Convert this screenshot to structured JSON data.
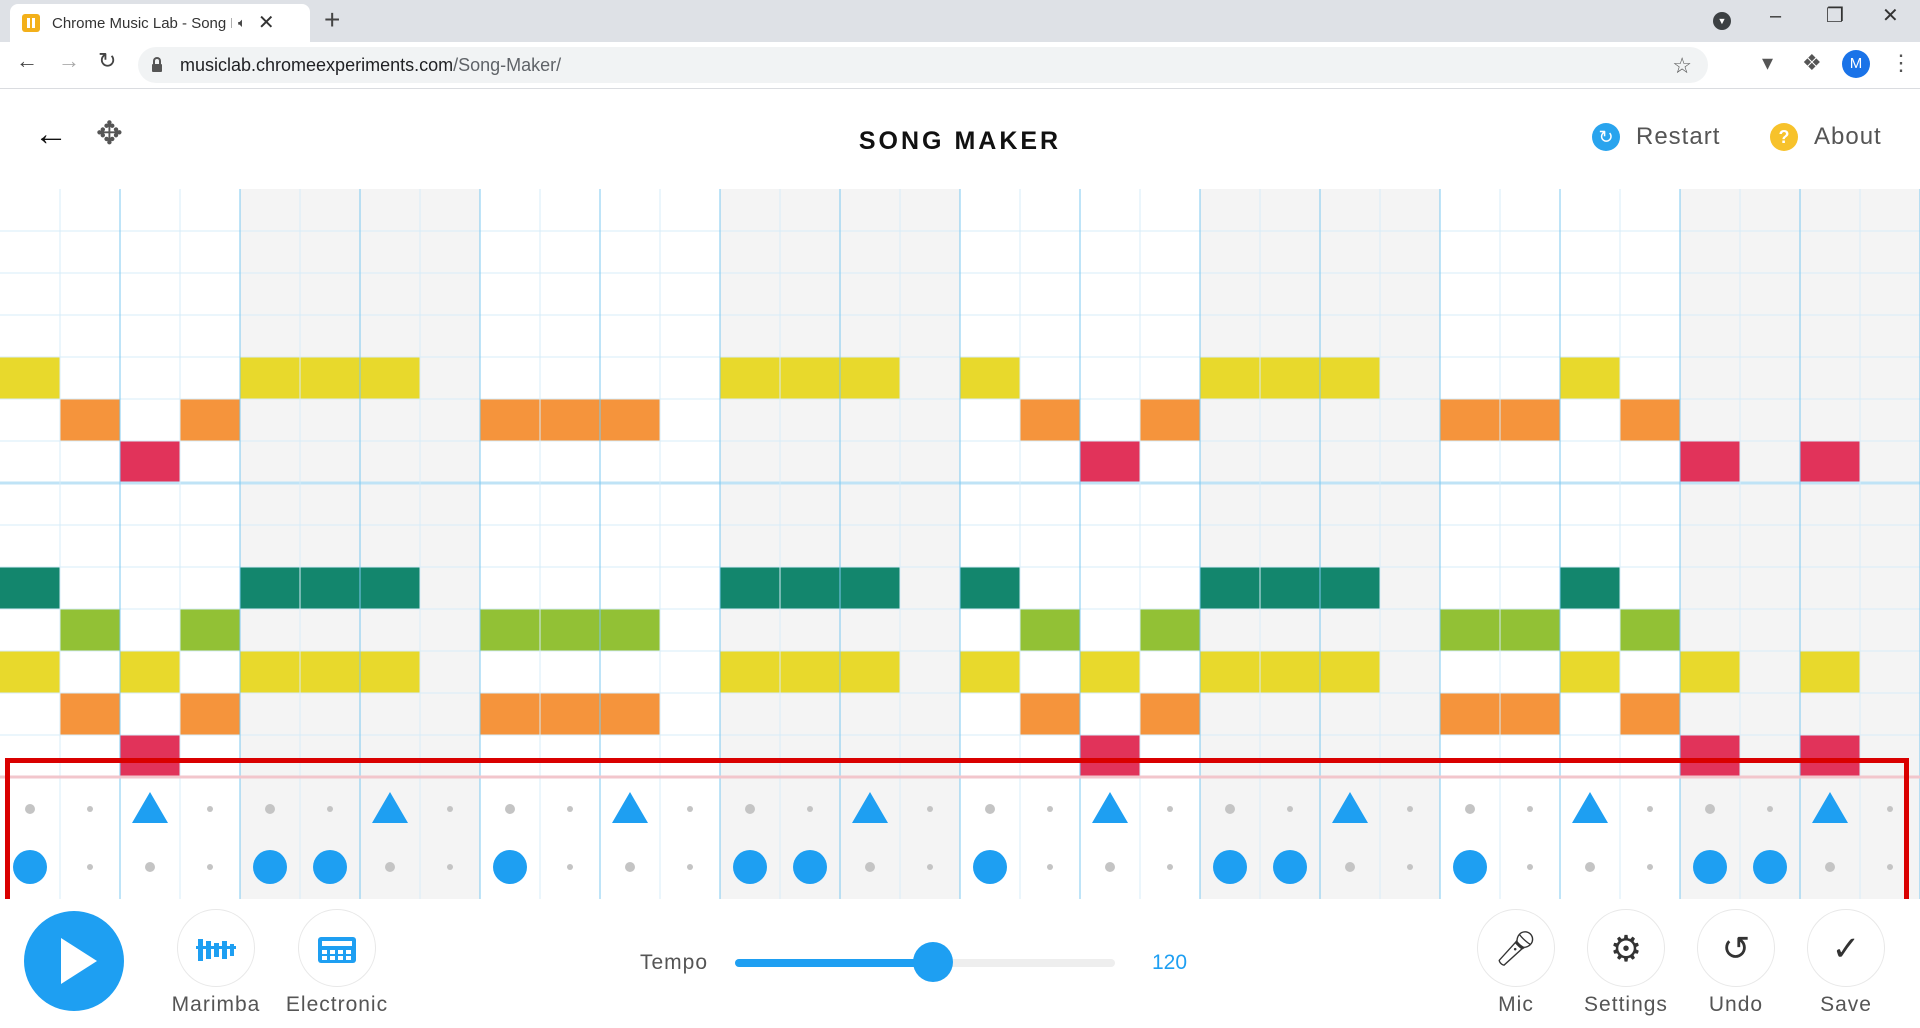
{
  "browser": {
    "tab_title": "Chrome Music Lab - Song Maker",
    "url_domain": "musiclab.chromeexperiments.com",
    "url_path": "/Song-Maker/",
    "profile_initial": "M"
  },
  "header": {
    "title": "SONG MAKER",
    "restart_label": "Restart",
    "about_label": "About"
  },
  "colors": {
    "accent": "#1e9ff2",
    "note_colors": [
      "#e8d92c",
      "#f5943c",
      "#e1335a",
      "#13866d",
      "#92c135"
    ]
  },
  "melody": {
    "columns": 32,
    "rows": 14,
    "notes": [
      {
        "col": 0,
        "row": 4,
        "color": 0
      },
      {
        "col": 1,
        "row": 5,
        "color": 1
      },
      {
        "col": 2,
        "row": 6,
        "color": 2
      },
      {
        "col": 3,
        "row": 5,
        "color": 1
      },
      {
        "col": 4,
        "row": 4,
        "color": 0
      },
      {
        "col": 5,
        "row": 4,
        "color": 0
      },
      {
        "col": 6,
        "row": 4,
        "color": 0
      },
      {
        "col": 8,
        "row": 5,
        "color": 1
      },
      {
        "col": 9,
        "row": 5,
        "color": 1
      },
      {
        "col": 10,
        "row": 5,
        "color": 1
      },
      {
        "col": 12,
        "row": 4,
        "color": 0
      },
      {
        "col": 13,
        "row": 4,
        "color": 0
      },
      {
        "col": 14,
        "row": 4,
        "color": 0
      },
      {
        "col": 16,
        "row": 4,
        "color": 0
      },
      {
        "col": 17,
        "row": 5,
        "color": 1
      },
      {
        "col": 18,
        "row": 6,
        "color": 2
      },
      {
        "col": 19,
        "row": 5,
        "color": 1
      },
      {
        "col": 20,
        "row": 4,
        "color": 0
      },
      {
        "col": 21,
        "row": 4,
        "color": 0
      },
      {
        "col": 22,
        "row": 4,
        "color": 0
      },
      {
        "col": 24,
        "row": 5,
        "color": 1
      },
      {
        "col": 25,
        "row": 5,
        "color": 1
      },
      {
        "col": 26,
        "row": 4,
        "color": 0
      },
      {
        "col": 27,
        "row": 5,
        "color": 1
      },
      {
        "col": 28,
        "row": 6,
        "color": 2
      },
      {
        "col": 30,
        "row": 6,
        "color": 2
      },
      {
        "col": 0,
        "row": 9,
        "color": 3
      },
      {
        "col": 1,
        "row": 10,
        "color": 4
      },
      {
        "col": 2,
        "row": 11,
        "color": 0
      },
      {
        "col": 3,
        "row": 10,
        "color": 4
      },
      {
        "col": 4,
        "row": 9,
        "color": 3
      },
      {
        "col": 5,
        "row": 9,
        "color": 3
      },
      {
        "col": 6,
        "row": 9,
        "color": 3
      },
      {
        "col": 8,
        "row": 10,
        "color": 4
      },
      {
        "col": 9,
        "row": 10,
        "color": 4
      },
      {
        "col": 10,
        "row": 10,
        "color": 4
      },
      {
        "col": 12,
        "row": 9,
        "color": 3
      },
      {
        "col": 13,
        "row": 9,
        "color": 3
      },
      {
        "col": 14,
        "row": 9,
        "color": 3
      },
      {
        "col": 16,
        "row": 9,
        "color": 3
      },
      {
        "col": 17,
        "row": 10,
        "color": 4
      },
      {
        "col": 18,
        "row": 11,
        "color": 0
      },
      {
        "col": 19,
        "row": 10,
        "color": 4
      },
      {
        "col": 20,
        "row": 9,
        "color": 3
      },
      {
        "col": 21,
        "row": 9,
        "color": 3
      },
      {
        "col": 22,
        "row": 9,
        "color": 3
      },
      {
        "col": 24,
        "row": 10,
        "color": 4
      },
      {
        "col": 25,
        "row": 10,
        "color": 4
      },
      {
        "col": 26,
        "row": 9,
        "color": 3
      },
      {
        "col": 27,
        "row": 10,
        "color": 4
      },
      {
        "col": 28,
        "row": 11,
        "color": 0
      },
      {
        "col": 30,
        "row": 11,
        "color": 0
      },
      {
        "col": 0,
        "row": 11,
        "color": 0
      },
      {
        "col": 1,
        "row": 12,
        "color": 1
      },
      {
        "col": 2,
        "row": 13,
        "color": 2
      },
      {
        "col": 3,
        "row": 12,
        "color": 1
      },
      {
        "col": 4,
        "row": 11,
        "color": 0
      },
      {
        "col": 5,
        "row": 11,
        "color": 0
      },
      {
        "col": 6,
        "row": 11,
        "color": 0
      },
      {
        "col": 8,
        "row": 12,
        "color": 1
      },
      {
        "col": 9,
        "row": 12,
        "color": 1
      },
      {
        "col": 10,
        "row": 12,
        "color": 1
      },
      {
        "col": 12,
        "row": 11,
        "color": 0
      },
      {
        "col": 13,
        "row": 11,
        "color": 0
      },
      {
        "col": 14,
        "row": 11,
        "color": 0
      },
      {
        "col": 16,
        "row": 11,
        "color": 0
      },
      {
        "col": 17,
        "row": 12,
        "color": 1
      },
      {
        "col": 18,
        "row": 13,
        "color": 2
      },
      {
        "col": 19,
        "row": 12,
        "color": 1
      },
      {
        "col": 20,
        "row": 11,
        "color": 0
      },
      {
        "col": 21,
        "row": 11,
        "color": 0
      },
      {
        "col": 22,
        "row": 11,
        "color": 0
      },
      {
        "col": 24,
        "row": 12,
        "color": 1
      },
      {
        "col": 25,
        "row": 12,
        "color": 1
      },
      {
        "col": 26,
        "row": 11,
        "color": 0
      },
      {
        "col": 27,
        "row": 12,
        "color": 1
      },
      {
        "col": 28,
        "row": 13,
        "color": 2
      },
      {
        "col": 30,
        "row": 13,
        "color": 2
      }
    ]
  },
  "rhythm": {
    "triangles": [
      2,
      6,
      10,
      14,
      18,
      22,
      26,
      30
    ],
    "circles": [
      0,
      4,
      5,
      8,
      12,
      13,
      16,
      20,
      21,
      24,
      28,
      29
    ]
  },
  "controls": {
    "instrument_melody_label": "Marimba",
    "instrument_rhythm_label": "Electronic",
    "tempo_label": "Tempo",
    "tempo_value": "120",
    "tempo_fraction": 0.52,
    "mic_label": "Mic",
    "settings_label": "Settings",
    "undo_label": "Undo",
    "save_label": "Save"
  }
}
